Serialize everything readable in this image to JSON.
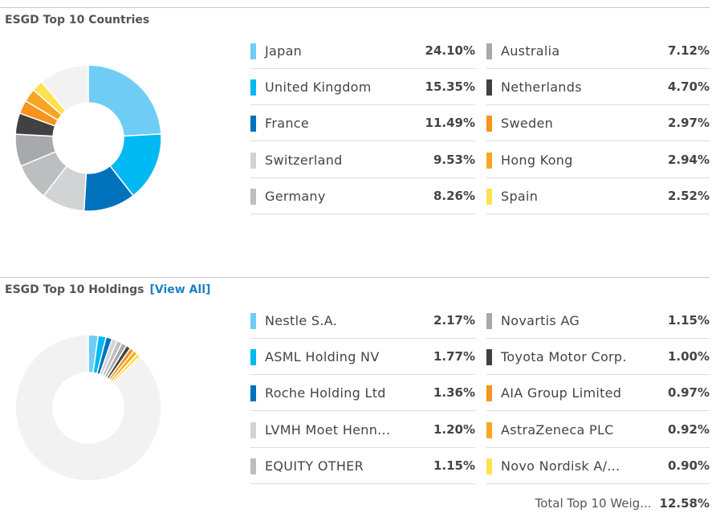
{
  "colors": [
    "#6fcdf5",
    "#00b9f2",
    "#0072bc",
    "#d1d3d4",
    "#bcbec0",
    "#a7a9ac",
    "#414042",
    "#f7941d",
    "#f6a623",
    "#fde24f"
  ],
  "background_slice_color": "#f2f2f2",
  "countries": {
    "title": "ESGD Top 10 Countries",
    "chart_data": {
      "type": "pie",
      "title": "ESGD Top 10 Countries",
      "categories": [
        "Japan",
        "United Kingdom",
        "France",
        "Switzerland",
        "Germany",
        "Australia",
        "Netherlands",
        "Sweden",
        "Hong Kong",
        "Spain"
      ],
      "values": [
        24.1,
        15.35,
        11.49,
        9.53,
        8.26,
        7.12,
        4.7,
        2.97,
        2.94,
        2.52
      ],
      "value_labels": [
        "24.10%",
        "15.35%",
        "11.49%",
        "9.53%",
        "8.26%",
        "7.12%",
        "4.70%",
        "2.97%",
        "2.94%",
        "2.52%"
      ],
      "remainder": 11.02,
      "unit": "%"
    }
  },
  "holdings": {
    "title": "ESGD Top 10 Holdings",
    "view_all_label": "[View All]",
    "total_label": "Total Top 10 Weig...",
    "total_value": "12.58%",
    "chart_data": {
      "type": "pie",
      "title": "ESGD Top 10 Holdings",
      "categories": [
        "Nestle S.A.",
        "ASML Holding NV",
        "Roche Holding Ltd",
        "LVMH Moet Henn...",
        "EQUITY OTHER",
        "Novartis AG",
        "Toyota Motor Corp.",
        "AIA Group Limited",
        "AstraZeneca PLC",
        "Novo Nordisk A/..."
      ],
      "values": [
        2.17,
        1.77,
        1.36,
        1.2,
        1.15,
        1.15,
        1.0,
        0.97,
        0.92,
        0.9
      ],
      "value_labels": [
        "2.17%",
        "1.77%",
        "1.36%",
        "1.20%",
        "1.15%",
        "1.15%",
        "1.00%",
        "0.97%",
        "0.92%",
        "0.90%"
      ],
      "remainder": 87.42,
      "unit": "%"
    }
  }
}
